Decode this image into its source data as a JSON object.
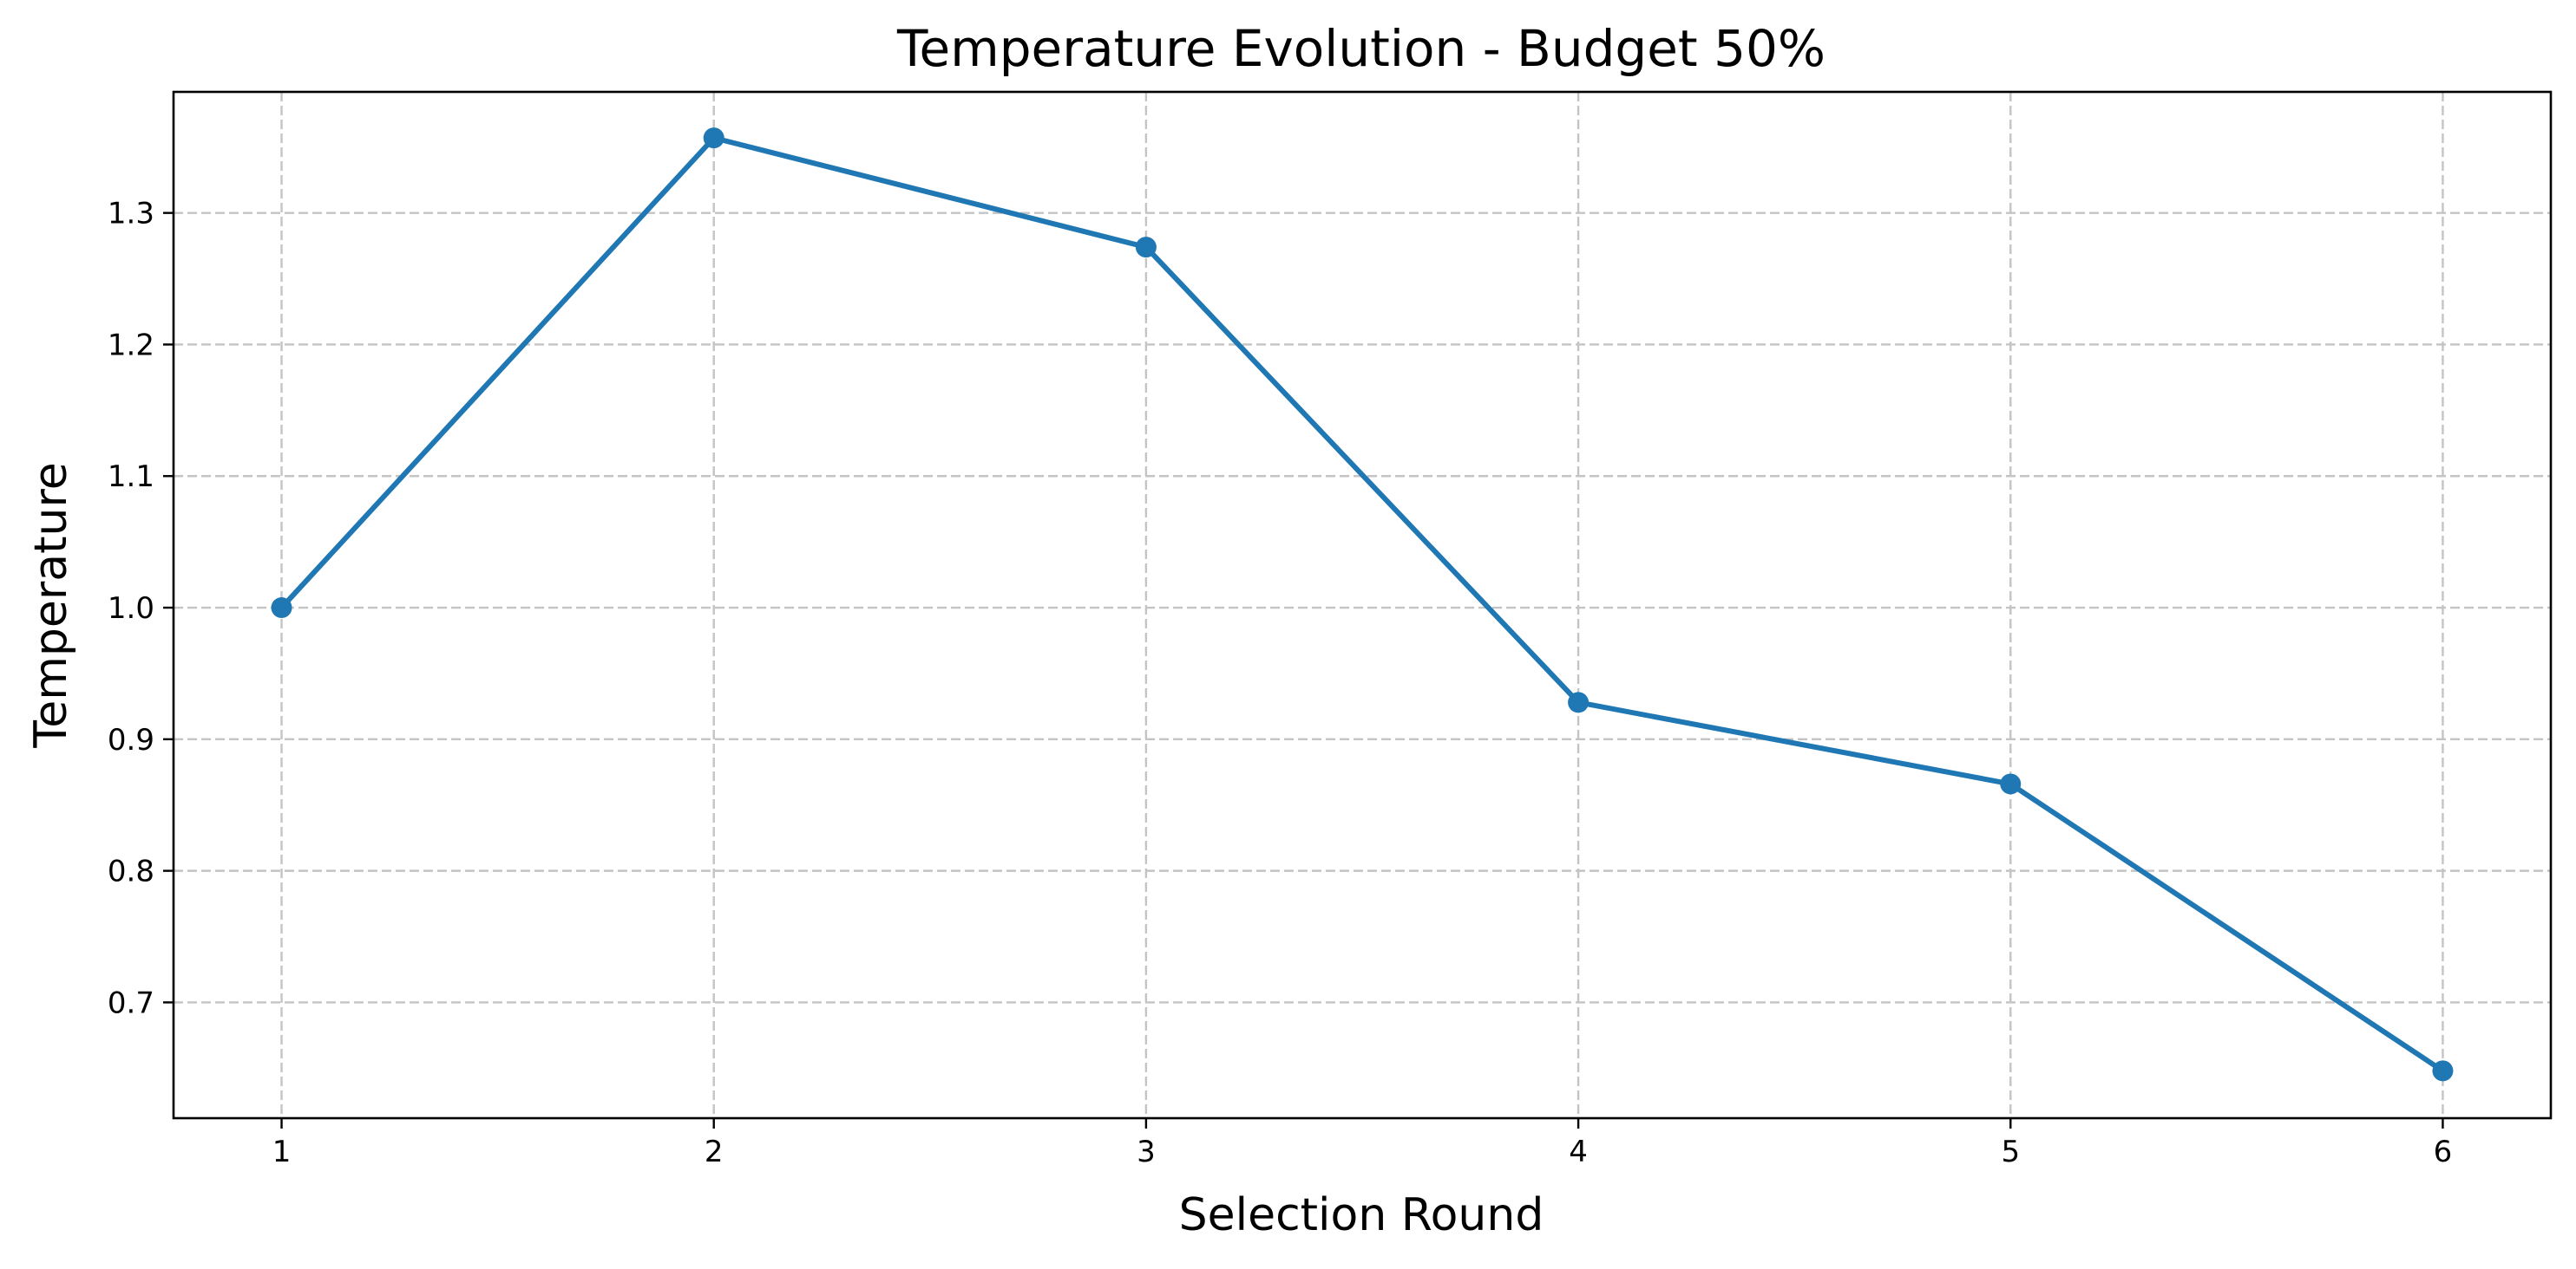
{
  "chart_data": {
    "type": "line",
    "title": "Temperature Evolution - Budget 50%",
    "xlabel": "Selection Round",
    "ylabel": "Temperature",
    "x": [
      1,
      2,
      3,
      4,
      5,
      6
    ],
    "series": [
      {
        "values": [
          1.0,
          1.357,
          1.274,
          0.928,
          0.866,
          0.648
        ],
        "color": "#1f77b4",
        "marker": "circle"
      }
    ],
    "xlim": [
      0.75,
      6.25
    ],
    "ylim": [
      0.612,
      1.392
    ],
    "xticks": [
      1,
      2,
      3,
      4,
      5,
      6
    ],
    "xtick_labels": [
      "1",
      "2",
      "3",
      "4",
      "5",
      "6"
    ],
    "yticks": [
      0.7,
      0.8,
      0.9,
      1.0,
      1.1,
      1.2,
      1.3
    ],
    "ytick_labels": [
      "0.7",
      "0.8",
      "0.9",
      "1.0",
      "1.1",
      "1.2",
      "1.3"
    ],
    "grid": true,
    "grid_style": "dashed",
    "legend": false
  }
}
